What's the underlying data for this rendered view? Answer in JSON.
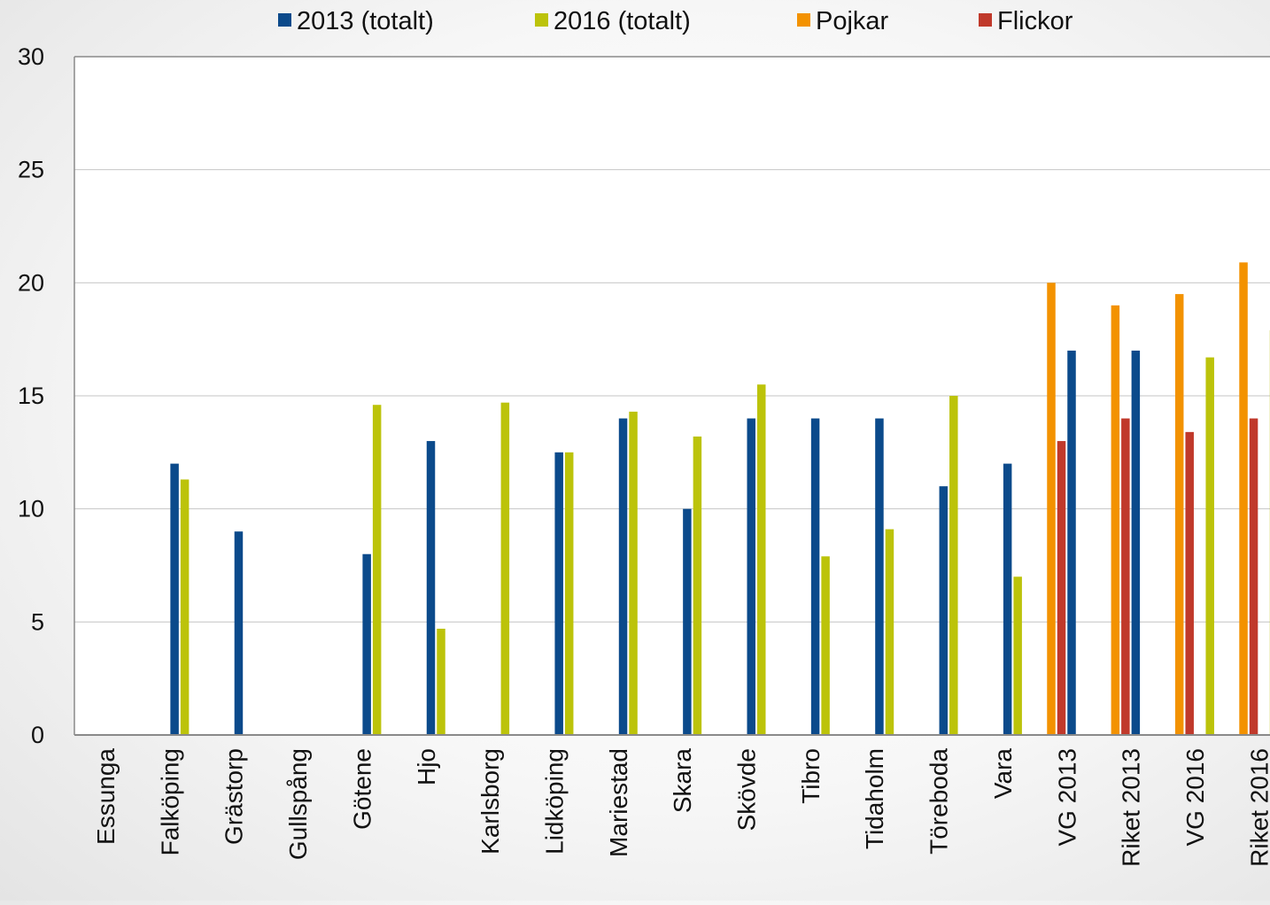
{
  "chart_data": {
    "type": "bar",
    "title": "",
    "xlabel": "",
    "ylabel": "",
    "ylim": [
      0,
      30
    ],
    "yticks": [
      0,
      5,
      10,
      15,
      20,
      25,
      30
    ],
    "grid": true,
    "legend_position": "top",
    "categories": [
      "Essunga",
      "Falköping",
      "Grästorp",
      "Gullspång",
      "Götene",
      "Hjo",
      "Karlsborg",
      "Lidköping",
      "Mariestad",
      "Skara",
      "Skövde",
      "Tibro",
      "Tidaholm",
      "Töreboda",
      "Vara",
      "VG 2013",
      "Riket 2013",
      "VG 2016",
      "Riket 2016"
    ],
    "series": [
      {
        "name": "Pojkar",
        "color": "#f39200",
        "values": [
          null,
          null,
          null,
          null,
          null,
          null,
          null,
          null,
          null,
          null,
          null,
          null,
          null,
          null,
          null,
          20,
          19,
          19.5,
          20.9
        ]
      },
      {
        "name": "Flickor",
        "color": "#c0392b",
        "values": [
          null,
          null,
          null,
          null,
          null,
          null,
          null,
          null,
          null,
          null,
          null,
          null,
          null,
          null,
          null,
          13,
          14,
          13.4,
          14
        ]
      },
      {
        "name": "2013 (totalt)",
        "color": "#0b4a8b",
        "values": [
          null,
          12,
          9,
          null,
          8,
          13,
          null,
          12.5,
          14,
          10,
          14,
          14,
          14,
          11,
          12,
          17,
          17,
          null,
          null
        ]
      },
      {
        "name": "2016 (totalt)",
        "color": "#bcc30a",
        "values": [
          null,
          11.3,
          null,
          null,
          14.6,
          4.7,
          14.7,
          12.5,
          14.3,
          13.2,
          15.5,
          7.9,
          9.1,
          15,
          7,
          null,
          null,
          16.7,
          17.9
        ]
      }
    ],
    "legend_order": [
      "2013 (totalt)",
      "2016 (totalt)",
      "Pojkar",
      "Flickor"
    ]
  }
}
